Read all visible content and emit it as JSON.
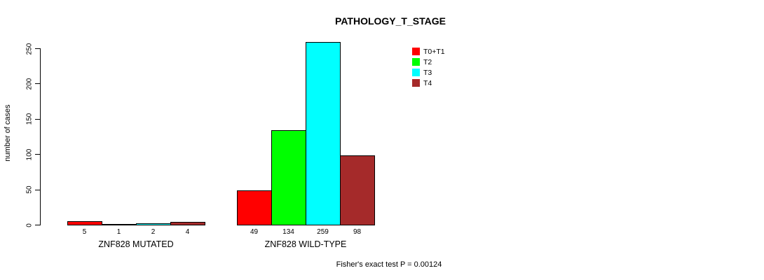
{
  "chart_data": {
    "type": "bar",
    "title": "PATHOLOGY_T_STAGE",
    "xlabel": "",
    "ylabel": "number of cases",
    "ylim": [
      0,
      250
    ],
    "yticks": [
      0,
      50,
      100,
      150,
      200,
      250
    ],
    "grid": false,
    "legend_position": "top-right",
    "series": [
      {
        "name": "T0+T1",
        "color": "#FF0000"
      },
      {
        "name": "T2",
        "color": "#00FF00"
      },
      {
        "name": "T3",
        "color": "#00FFFF"
      },
      {
        "name": "T4",
        "color": "#A52A2A"
      }
    ],
    "groups": [
      {
        "label": "ZNF828 MUTATED",
        "values": [
          5,
          1,
          2,
          4
        ]
      },
      {
        "label": "ZNF828 WILD-TYPE",
        "values": [
          49,
          134,
          259,
          98
        ]
      }
    ],
    "bar_value_labels": true,
    "annotation": "Fisher's exact test P = 0.00124"
  }
}
